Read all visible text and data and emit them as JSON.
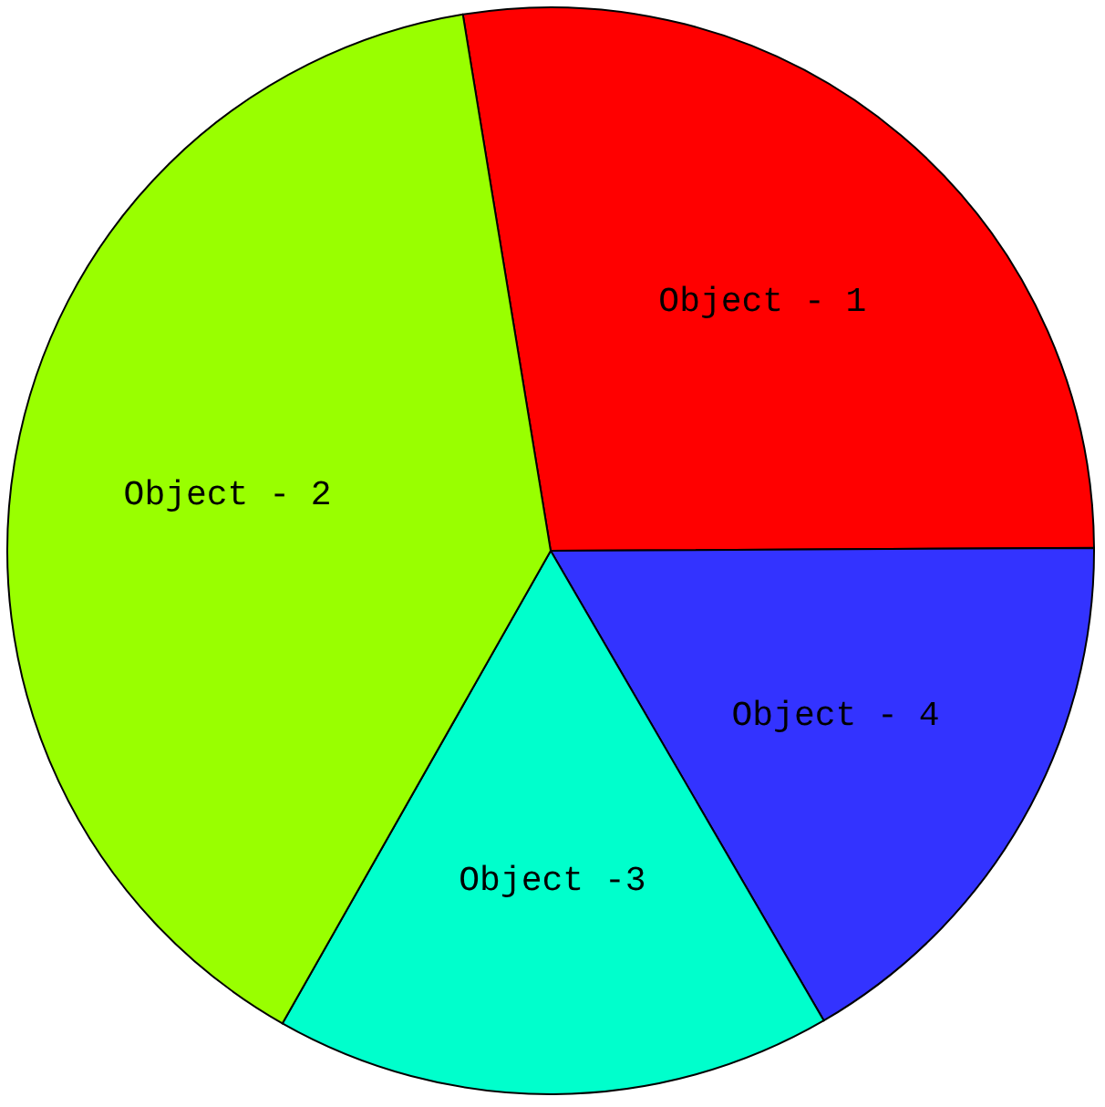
{
  "chart_data": {
    "type": "pie",
    "categories": [
      "Object - 1",
      "Object - 4",
      "Object -3",
      "Object - 2"
    ],
    "values": [
      27.5,
      16.7,
      16.6,
      39.2
    ],
    "colors": [
      "#ff0000",
      "#3333ff",
      "#00ffcc",
      "#99ff00"
    ]
  }
}
